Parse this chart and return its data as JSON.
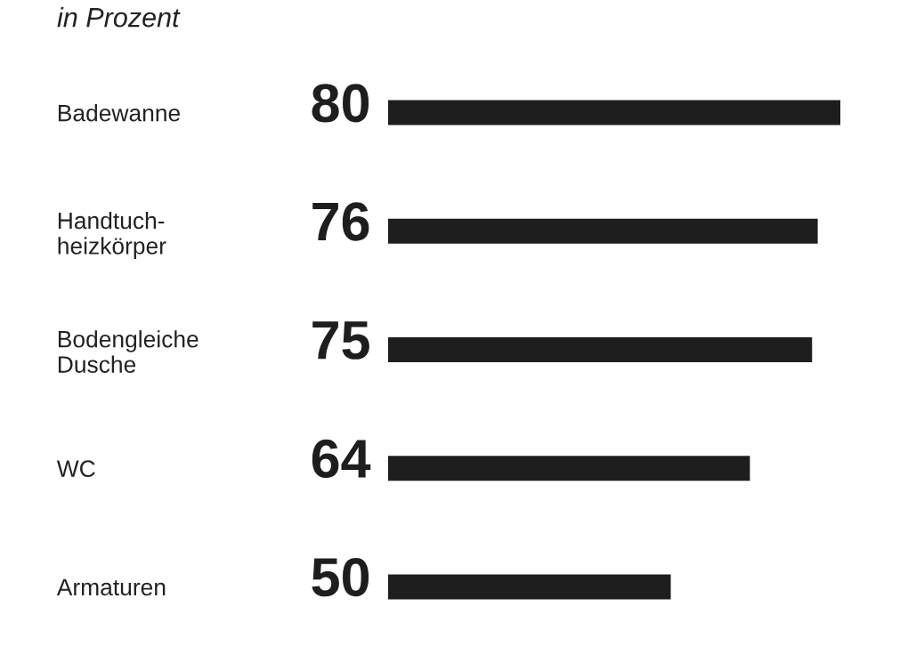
{
  "chart_data": {
    "type": "bar",
    "orientation": "horizontal",
    "subtitle": "in Prozent",
    "categories": [
      "Badewanne",
      "Handtuch-\nheizkörper",
      "Bodengleiche\nDusche",
      "WC",
      "Armaturen"
    ],
    "values": [
      80,
      76,
      75,
      64,
      50
    ],
    "color": "#1e1e1e",
    "xlim": [
      0,
      80
    ],
    "tick_labels": "y",
    "data_labels": true,
    "grid": false,
    "legend": false
  }
}
